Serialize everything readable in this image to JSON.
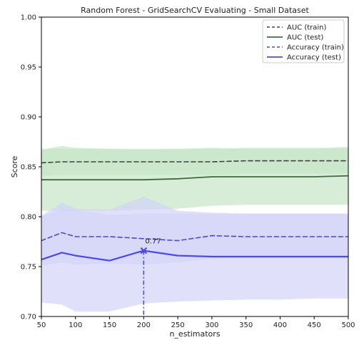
{
  "chart_data": {
    "type": "line",
    "title": "Random Forest - GridSearchCV Evaluating - Small Dataset",
    "xlabel": "n_estimators",
    "ylabel": "Score",
    "xlim": [
      50,
      500
    ],
    "ylim": [
      0.7,
      1.0
    ],
    "x_ticks": [
      "50",
      "100",
      "150",
      "200",
      "250",
      "300",
      "350",
      "400",
      "450",
      "500"
    ],
    "y_ticks": [
      "0.70",
      "0.75",
      "0.80",
      "0.85",
      "0.90",
      "0.95",
      "1.00"
    ],
    "grid": false,
    "legend_position": "top-right",
    "x": [
      50,
      80,
      100,
      150,
      200,
      250,
      300,
      350,
      400,
      450,
      500
    ],
    "series": [
      {
        "name": "AUC (train)",
        "color": "#404040",
        "style": "dashed",
        "values": [
          0.854,
          0.855,
          0.855,
          0.855,
          0.855,
          0.855,
          0.855,
          0.856,
          0.856,
          0.856,
          0.856
        ],
        "band": {
          "color": "#c8e6c8",
          "lower": [
            0.841,
            0.842,
            0.842,
            0.842,
            0.842,
            0.842,
            0.842,
            0.843,
            0.843,
            0.843,
            0.843
          ],
          "upper": [
            0.867,
            0.871,
            0.869,
            0.868,
            0.868,
            0.868,
            0.868,
            0.869,
            0.869,
            0.869,
            0.869
          ]
        }
      },
      {
        "name": "AUC (test)",
        "color": "#3c6b3c",
        "style": "solid",
        "values": [
          0.837,
          0.837,
          0.837,
          0.837,
          0.837,
          0.838,
          0.84,
          0.84,
          0.84,
          0.84,
          0.841
        ],
        "band": {
          "color": "#c8e6c8",
          "lower": [
            0.806,
            0.806,
            0.806,
            0.806,
            0.807,
            0.808,
            0.811,
            0.812,
            0.812,
            0.812,
            0.812
          ],
          "upper": [
            0.868,
            0.868,
            0.868,
            0.868,
            0.867,
            0.868,
            0.869,
            0.868,
            0.868,
            0.868,
            0.87
          ]
        }
      },
      {
        "name": "Accuracy (train)",
        "color": "#4b4bc8",
        "style": "dashed",
        "values": [
          0.776,
          0.784,
          0.78,
          0.78,
          0.778,
          0.776,
          0.781,
          0.78,
          0.78,
          0.78,
          0.78
        ],
        "band": {
          "color": "#d4d4f8",
          "lower": [
            0.751,
            0.754,
            0.752,
            0.753,
            0.752,
            0.754,
            0.758,
            0.758,
            0.758,
            0.758,
            0.758
          ],
          "upper": [
            0.801,
            0.814,
            0.808,
            0.807,
            0.82,
            0.806,
            0.804,
            0.803,
            0.803,
            0.803,
            0.803
          ]
        }
      },
      {
        "name": "Accuracy (test)",
        "color": "#4b4be6",
        "style": "solid",
        "values": [
          0.757,
          0.764,
          0.761,
          0.756,
          0.766,
          0.761,
          0.76,
          0.76,
          0.76,
          0.76,
          0.76
        ],
        "band": {
          "color": "#d4d4f8",
          "lower": [
            0.714,
            0.712,
            0.705,
            0.705,
            0.713,
            0.715,
            0.716,
            0.717,
            0.717,
            0.718,
            0.718
          ],
          "upper": [
            0.8,
            0.808,
            0.807,
            0.802,
            0.803,
            0.803,
            0.803,
            0.803,
            0.803,
            0.803,
            0.803
          ]
        }
      }
    ],
    "best_point": {
      "x": 200,
      "y": 0.766,
      "label": "0.77",
      "color": "#4b4be6"
    }
  }
}
